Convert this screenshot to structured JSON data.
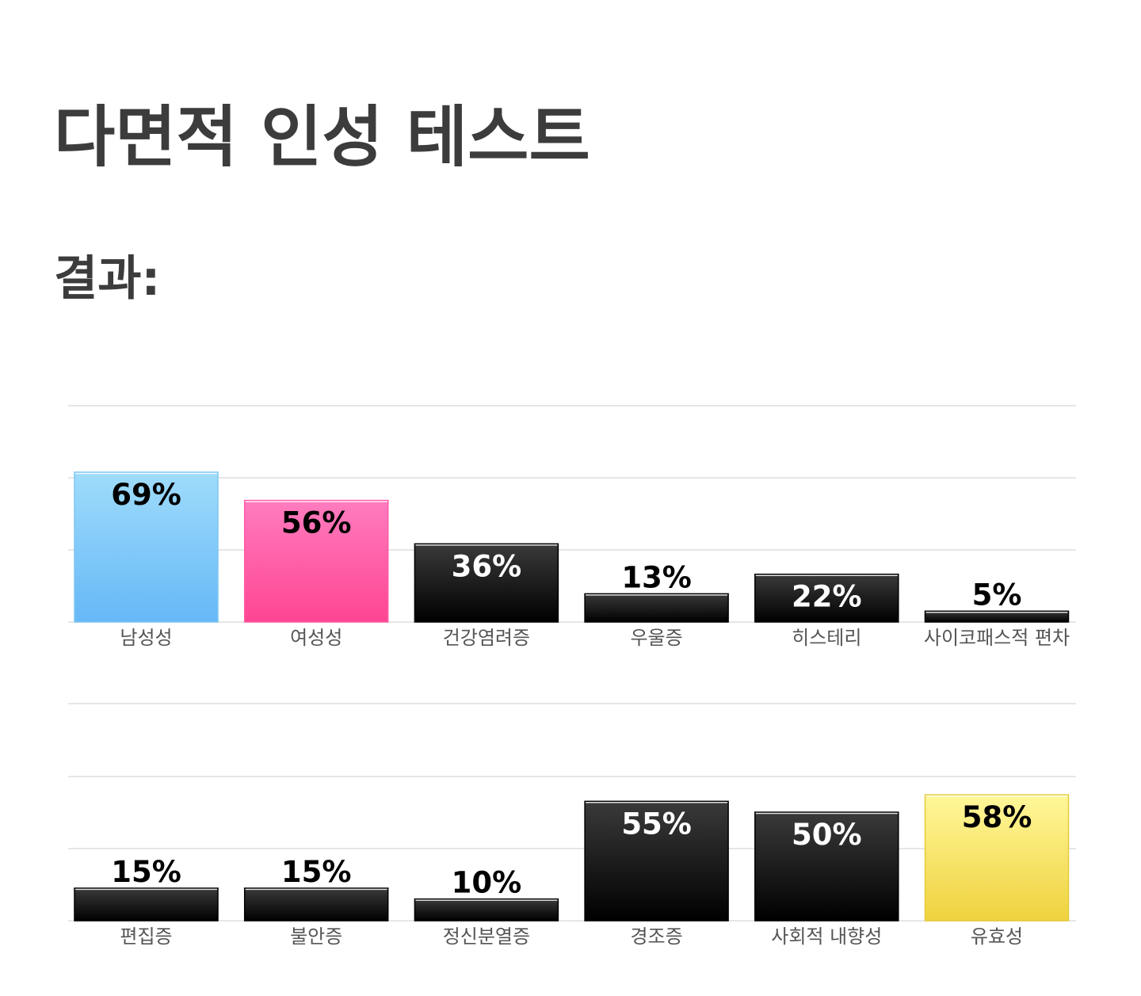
{
  "page": {
    "title": "다면적 인성 테스트",
    "results_heading": "결과:"
  },
  "colors": {
    "title_text": "#3c3c3c",
    "gridline": "#e6e6e6",
    "category_label": "#555555",
    "blue_top": "#9fdcfb",
    "blue_bottom": "#66b8f7",
    "pink_top": "#ff7cbf",
    "pink_bottom": "#ff4592",
    "black_top": "#3a3a3a",
    "black_bottom": "#000000",
    "yellow_top": "#fff79a",
    "yellow_bottom": "#efd23e"
  },
  "chart_data": [
    {
      "type": "bar",
      "title": "",
      "xlabel": "",
      "ylabel": "",
      "ylim": [
        0,
        100
      ],
      "grid": true,
      "categories": [
        "남성성",
        "여성성",
        "건강염려증",
        "우울증",
        "히스테리",
        "사이코패스적 편차"
      ],
      "values": [
        69,
        56,
        36,
        13,
        22,
        5
      ],
      "value_labels": [
        "69%",
        "56%",
        "36%",
        "13%",
        "22%",
        "5%"
      ],
      "bar_colors": [
        "blue",
        "pink",
        "black",
        "black",
        "black",
        "black"
      ]
    },
    {
      "type": "bar",
      "title": "",
      "xlabel": "",
      "ylabel": "",
      "ylim": [
        0,
        100
      ],
      "grid": true,
      "categories": [
        "편집증",
        "불안증",
        "정신분열증",
        "경조증",
        "사회적 내향성",
        "유효성"
      ],
      "values": [
        15,
        15,
        10,
        55,
        50,
        58
      ],
      "value_labels": [
        "15%",
        "15%",
        "10%",
        "55%",
        "50%",
        "58%"
      ],
      "bar_colors": [
        "black",
        "black",
        "black",
        "black",
        "black",
        "yellow"
      ]
    }
  ]
}
